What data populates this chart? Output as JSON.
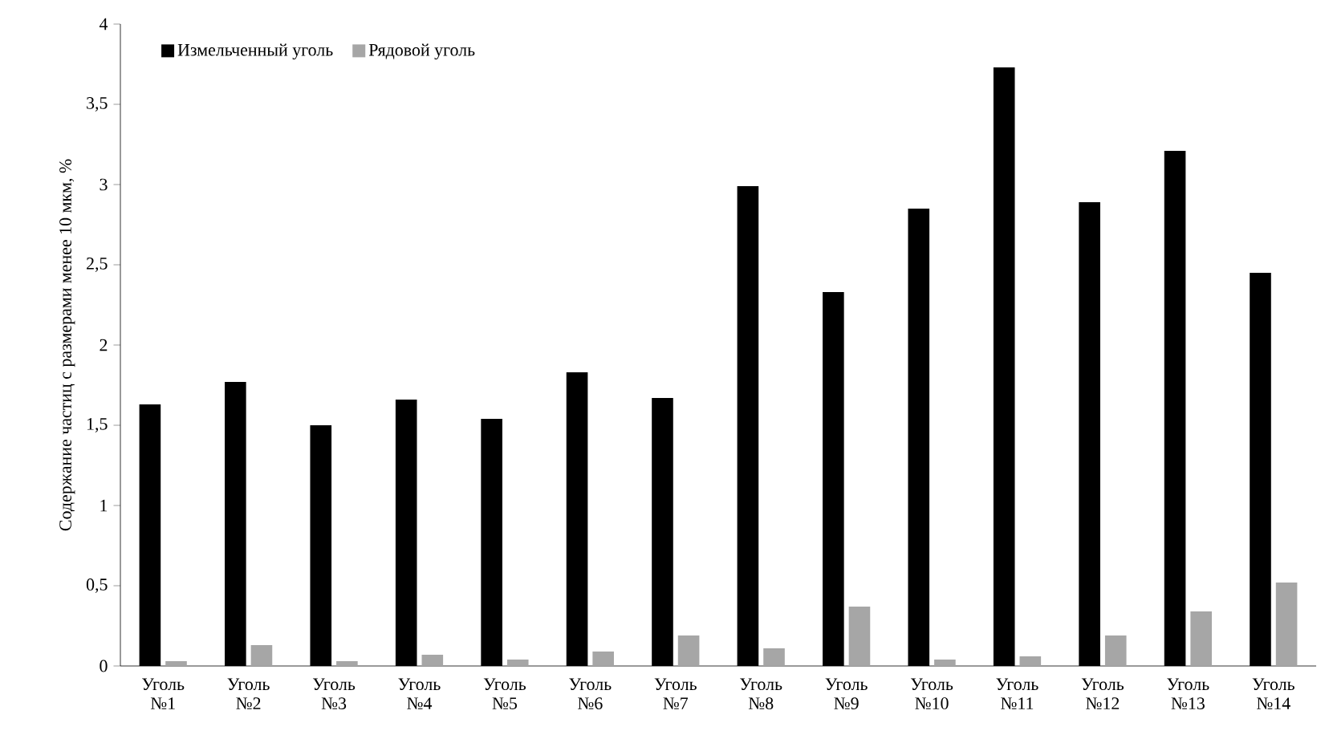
{
  "chart_data": {
    "type": "bar",
    "ylabel": "Содержание частиц с размерами менее 10 мкм, %",
    "categories": [
      "Уголь №1",
      "Уголь №2",
      "Уголь №3",
      "Уголь №4",
      "Уголь №5",
      "Уголь №6",
      "Уголь №7",
      "Уголь №8",
      "Уголь №9",
      "Уголь №10",
      "Уголь №11",
      "Уголь №12",
      "Уголь №13",
      "Уголь №14"
    ],
    "series": [
      {
        "name": "Измельченный уголь",
        "color": "#000000",
        "values": [
          1.63,
          1.77,
          1.5,
          1.66,
          1.54,
          1.83,
          1.67,
          2.99,
          2.33,
          2.85,
          3.73,
          2.89,
          3.21,
          2.45
        ]
      },
      {
        "name": "Рядовой уголь",
        "color": "#a6a6a6",
        "values": [
          0.03,
          0.13,
          0.03,
          0.07,
          0.04,
          0.09,
          0.19,
          0.11,
          0.37,
          0.04,
          0.06,
          0.19,
          0.34,
          0.52
        ]
      }
    ],
    "ylim": [
      0,
      4
    ],
    "yticks": [
      0,
      {
        "value": 0.5,
        "label": "0,5"
      },
      1,
      {
        "value": 1.5,
        "label": "1,5"
      },
      2,
      {
        "value": 2.5,
        "label": "2,5"
      },
      3,
      {
        "value": 3.5,
        "label": "3,5"
      },
      4
    ],
    "grid": false,
    "legend": "top left"
  }
}
